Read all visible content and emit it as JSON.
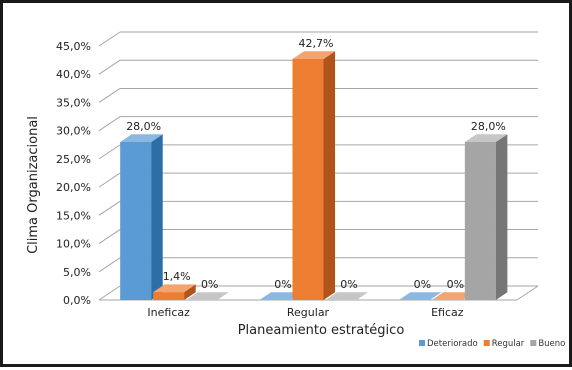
{
  "chart_data": {
    "type": "bar",
    "categories": [
      "Ineficaz",
      "Regular",
      "Eficaz"
    ],
    "series": [
      {
        "name": "Deteriorado",
        "values": [
          28.0,
          0,
          0
        ],
        "labels": [
          "28,0%",
          "0%",
          "0%"
        ],
        "color": "#5b9bd5",
        "side_color": "#2e6ea6",
        "top_color": "#8ab8e3"
      },
      {
        "name": "Regular",
        "values": [
          1.4,
          42.7,
          0
        ],
        "labels": [
          "1,4%",
          "42,7%",
          "0%"
        ],
        "color": "#ed7d31",
        "side_color": "#b0541b",
        "top_color": "#f4a46e"
      },
      {
        "name": "Bueno",
        "values": [
          0,
          0,
          28.0
        ],
        "labels": [
          "0%",
          "0%",
          "28,0%"
        ],
        "color": "#a5a5a5",
        "side_color": "#767676",
        "top_color": "#c6c6c6"
      }
    ],
    "y_ticks": [
      "0,0%",
      "5,0%",
      "10,0%",
      "15,0%",
      "20,0%",
      "25,0%",
      "30,0%",
      "35,0%",
      "40,0%",
      "45,0%"
    ],
    "ylim": [
      0,
      45
    ],
    "ylabel": "Clima Organizacional",
    "xlabel": "Planeamiento estratégico",
    "grid": true,
    "legend_position": "bottom-right"
  }
}
